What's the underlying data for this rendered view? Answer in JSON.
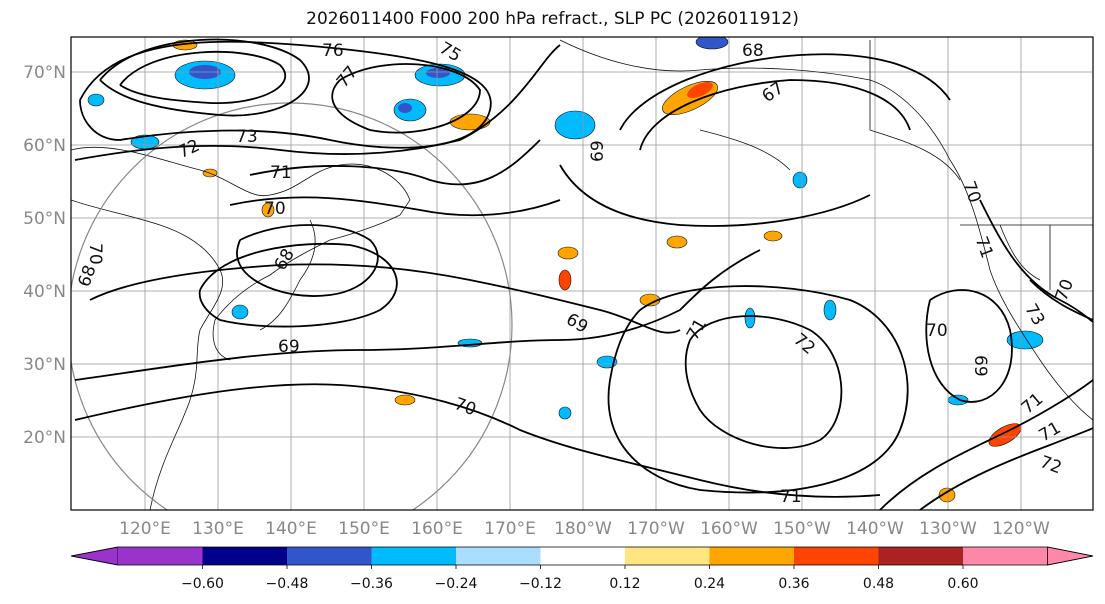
{
  "title": "2026011400 F000 200 hPa refract., SLP PC (2026011912)",
  "lat_labels": [
    "70°N",
    "60°N",
    "50°N",
    "40°N",
    "30°N",
    "20°N"
  ],
  "lon_labels": [
    "120°E",
    "130°E",
    "140°E",
    "150°E",
    "160°E",
    "170°E",
    "180°W",
    "170°W",
    "160°W",
    "150°W",
    "140°W",
    "130°W",
    "120°W"
  ],
  "colorbar": {
    "ticks": [
      "−0.60",
      "−0.48",
      "−0.36",
      "−0.24",
      "−0.12",
      "0.12",
      "0.24",
      "0.36",
      "0.48",
      "0.60"
    ],
    "colors": [
      "#9933cc",
      "#000088",
      "#3355cc",
      "#00bbff",
      "#aaddff",
      "#ffffff",
      "#ffe680",
      "#ffa500",
      "#ff4400",
      "#aa2222",
      "#ff88aa"
    ]
  },
  "contour_labels": [
    "76",
    "75",
    "77",
    "73",
    "72",
    "71",
    "70",
    "68",
    "69",
    "67",
    "68",
    "71",
    "70",
    "69",
    "72",
    "71",
    "70",
    "69",
    "73",
    "71",
    "72",
    "71",
    "70",
    "69",
    "70",
    "68",
    "70",
    "71"
  ]
}
